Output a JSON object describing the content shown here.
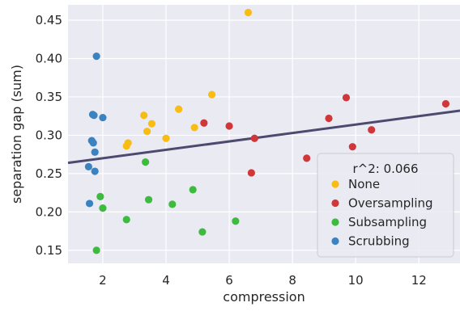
{
  "chart_data": {
    "type": "scatter",
    "title": "",
    "xlabel": "compression",
    "ylabel": "separation gap (sum)",
    "xlim": [
      0.9,
      13.3
    ],
    "ylim": [
      0.133,
      0.47
    ],
    "x_ticks": [
      2,
      4,
      6,
      8,
      10,
      12
    ],
    "y_ticks": [
      0.15,
      0.2,
      0.25,
      0.3,
      0.35,
      0.4,
      0.45
    ],
    "grid": true,
    "background": "#eaeaf2",
    "legend": {
      "placement": "lower-right",
      "title": "r^2: 0.066"
    },
    "fit_line": {
      "x": [
        0.9,
        13.3
      ],
      "y": [
        0.264,
        0.332
      ],
      "color": "#4c4a6e"
    },
    "series": [
      {
        "name": "None",
        "color": "#f9bc12",
        "points": [
          [
            2.75,
            0.286
          ],
          [
            2.8,
            0.29
          ],
          [
            3.3,
            0.326
          ],
          [
            3.4,
            0.305
          ],
          [
            3.55,
            0.315
          ],
          [
            4.0,
            0.296
          ],
          [
            4.4,
            0.334
          ],
          [
            4.9,
            0.31
          ],
          [
            5.45,
            0.353
          ],
          [
            6.6,
            0.46
          ]
        ]
      },
      {
        "name": "Oversampling",
        "color": "#d0373a",
        "points": [
          [
            5.2,
            0.316
          ],
          [
            6.0,
            0.312
          ],
          [
            6.7,
            0.251
          ],
          [
            6.8,
            0.296
          ],
          [
            8.45,
            0.27
          ],
          [
            9.15,
            0.322
          ],
          [
            9.7,
            0.349
          ],
          [
            9.9,
            0.285
          ],
          [
            10.5,
            0.307
          ],
          [
            12.85,
            0.341
          ]
        ]
      },
      {
        "name": "Subsampling",
        "color": "#3cbb3e",
        "points": [
          [
            1.8,
            0.15
          ],
          [
            1.92,
            0.22
          ],
          [
            2.0,
            0.205
          ],
          [
            2.75,
            0.19
          ],
          [
            3.35,
            0.265
          ],
          [
            3.45,
            0.216
          ],
          [
            4.2,
            0.21
          ],
          [
            4.85,
            0.229
          ],
          [
            5.15,
            0.174
          ],
          [
            6.2,
            0.188
          ]
        ]
      },
      {
        "name": "Scrubbing",
        "color": "#3a83c0",
        "points": [
          [
            1.55,
            0.259
          ],
          [
            1.58,
            0.211
          ],
          [
            1.65,
            0.293
          ],
          [
            1.68,
            0.327
          ],
          [
            1.7,
            0.29
          ],
          [
            1.75,
            0.278
          ],
          [
            1.75,
            0.253
          ],
          [
            1.8,
            0.403
          ],
          [
            2.0,
            0.323
          ],
          [
            1.72,
            0.326
          ]
        ]
      }
    ]
  }
}
